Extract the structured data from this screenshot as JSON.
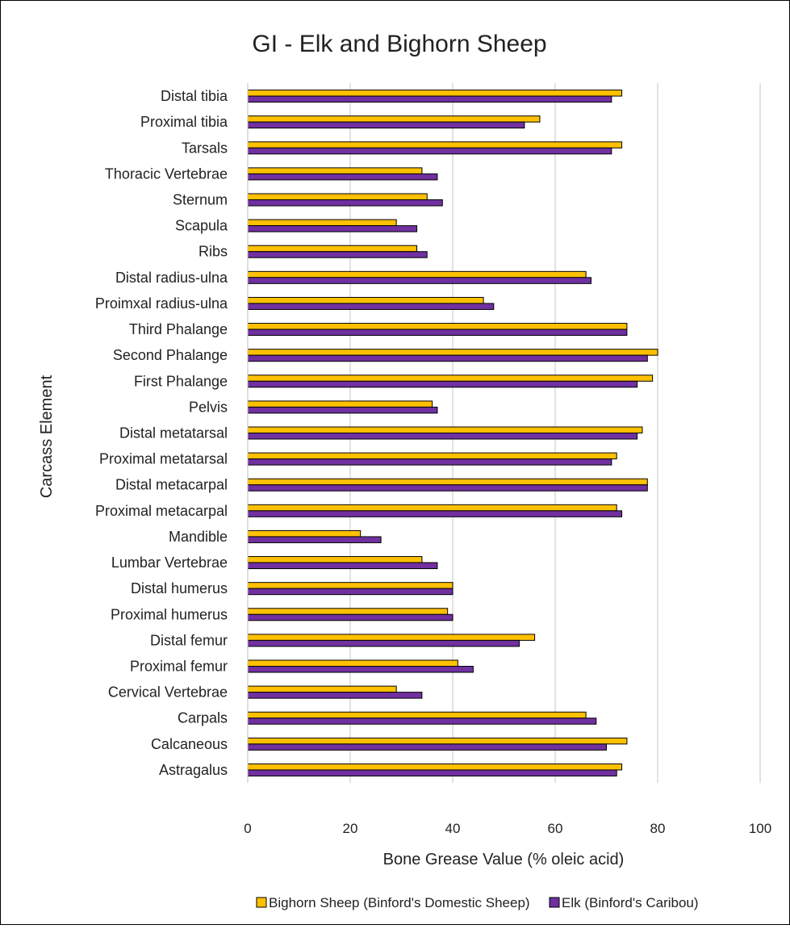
{
  "chart_data": {
    "type": "bar",
    "orientation": "horizontal",
    "title": "GI - Elk and Bighorn Sheep",
    "xlabel": "Bone Grease Value (% oleic acid)",
    "ylabel": "Carcass Element",
    "xlim": [
      0,
      100
    ],
    "xticks": [
      "0",
      "20",
      "40",
      "60",
      "80",
      "100"
    ],
    "grid": "vertical major gridlines",
    "legend_position": "bottom",
    "categories": [
      "Distal tibia",
      "Proximal tibia",
      "Tarsals",
      "Thoracic Vertebrae",
      "Sternum",
      "Scapula",
      "Ribs",
      "Distal radius-ulna",
      "Proimxal radius-ulna",
      "Third Phalange",
      "Second Phalange",
      "First Phalange",
      "Pelvis",
      "Distal metatarsal",
      "Proximal metatarsal",
      "Distal metacarpal",
      "Proximal metacarpal",
      "Mandible",
      "Lumbar Vertebrae",
      "Distal humerus",
      "Proximal humerus",
      "Distal femur",
      "Proximal femur",
      "Cervical Vertebrae",
      "Carpals",
      "Calcaneous",
      "Astragalus"
    ],
    "series": [
      {
        "name": "Bighorn Sheep (Binford's Domestic Sheep)",
        "color": "#FFC000",
        "values": [
          73,
          57,
          73,
          34,
          35,
          29,
          33,
          66,
          46,
          74,
          80,
          79,
          36,
          77,
          72,
          78,
          72,
          22,
          34,
          40,
          39,
          56,
          41,
          29,
          66,
          74,
          73
        ]
      },
      {
        "name": "Elk (Binford's Caribou)",
        "color": "#7030A0",
        "values": [
          71,
          54,
          71,
          37,
          38,
          33,
          35,
          67,
          48,
          74,
          78,
          76,
          37,
          76,
          71,
          78,
          73,
          26,
          37,
          40,
          40,
          53,
          44,
          34,
          68,
          70,
          72
        ]
      }
    ]
  }
}
